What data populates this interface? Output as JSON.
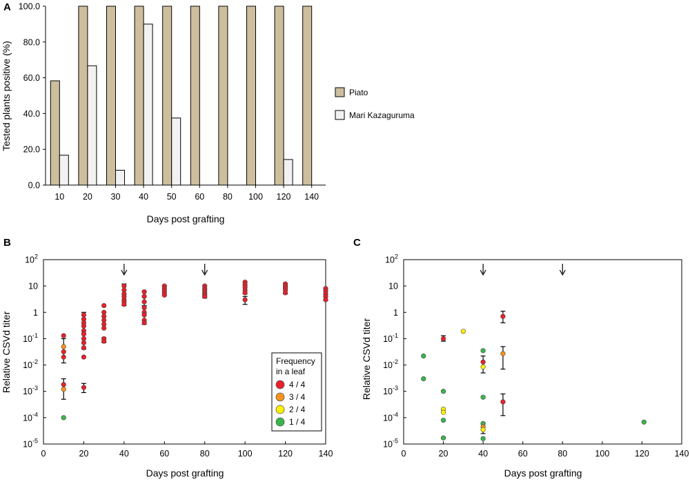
{
  "colors": {
    "piato": "#cdbf9e",
    "mari": "#f2f2f2",
    "freq_4_4": "#e8202a",
    "freq_3_4": "#f7941d",
    "freq_2_4": "#fff200",
    "freq_1_4": "#39b54a"
  },
  "chart_data": [
    {
      "panel_label": "A",
      "type": "bar",
      "categories": [
        "10",
        "20",
        "30",
        "40",
        "50",
        "60",
        "80",
        "100",
        "120",
        "140"
      ],
      "series": [
        {
          "name": "Piato",
          "values": [
            58.3,
            100,
            100,
            100,
            100,
            100,
            100,
            100,
            100,
            100
          ]
        },
        {
          "name": "Mari Kazaguruma",
          "values": [
            16.7,
            66.7,
            8.3,
            90.0,
            37.5,
            0,
            0,
            0,
            14.3,
            0
          ]
        }
      ],
      "xlabel": "Days post grafting",
      "ylabel": "Tested plants positive (%)",
      "ylim": [
        0,
        100
      ],
      "yticks": [
        "0.0",
        "20.0",
        "40.0",
        "60.0",
        "80.0",
        "100.0"
      ],
      "legend_position": "right"
    },
    {
      "panel_label": "B",
      "type": "scatter",
      "xlabel": "Days post grafting",
      "ylabel": "Relative CSVd titer",
      "xlim": [
        0,
        140
      ],
      "xticks": [
        "0",
        "20",
        "40",
        "60",
        "80",
        "100",
        "120",
        "140"
      ],
      "ylim_log10": [
        -5,
        2
      ],
      "yticks": [
        {
          "base": "10",
          "exp": "2"
        },
        {
          "base": "10",
          "exp": ""
        },
        {
          "base": "1",
          "exp": ""
        },
        {
          "base": "10",
          "exp": "-1"
        },
        {
          "base": "10",
          "exp": "-2"
        },
        {
          "base": "10",
          "exp": "-3"
        },
        {
          "base": "10",
          "exp": "-4"
        },
        {
          "base": "10",
          "exp": "-5"
        }
      ],
      "arrows_at_days": [
        40,
        80
      ],
      "legend": {
        "title_lines": [
          "Frequency",
          "in a leaf"
        ],
        "entries": [
          "4 / 4",
          "3 / 4",
          "2 / 4",
          "1 / 4"
        ],
        "position": "lower-right"
      },
      "points": [
        {
          "x": 10,
          "y": 0.13,
          "f": "4/4"
        },
        {
          "x": 10,
          "y": 0.05,
          "f": "3/4"
        },
        {
          "x": 10,
          "y": 0.032,
          "f": "4/4"
        },
        {
          "x": 10,
          "y": 0.02,
          "f": "4/4"
        },
        {
          "x": 10,
          "y": 0.0018,
          "f": "4/4"
        },
        {
          "x": 10,
          "y": 0.0012,
          "f": "3/4"
        },
        {
          "x": 10,
          "y": 0.0001,
          "f": "1/4"
        },
        {
          "x": 20,
          "y": 0.8,
          "f": "4/4"
        },
        {
          "x": 20,
          "y": 0.55,
          "f": "4/4"
        },
        {
          "x": 20,
          "y": 0.4,
          "f": "4/4"
        },
        {
          "x": 20,
          "y": 0.3,
          "f": "4/4"
        },
        {
          "x": 20,
          "y": 0.2,
          "f": "4/4"
        },
        {
          "x": 20,
          "y": 0.15,
          "f": "4/4"
        },
        {
          "x": 20,
          "y": 0.1,
          "f": "4/4"
        },
        {
          "x": 20,
          "y": 0.07,
          "f": "4/4"
        },
        {
          "x": 20,
          "y": 0.045,
          "f": "4/4"
        },
        {
          "x": 20,
          "y": 0.02,
          "f": "4/4"
        },
        {
          "x": 20,
          "y": 0.0014,
          "f": "4/4"
        },
        {
          "x": 30,
          "y": 1.8,
          "f": "4/4"
        },
        {
          "x": 30,
          "y": 1.0,
          "f": "4/4"
        },
        {
          "x": 30,
          "y": 0.7,
          "f": "4/4"
        },
        {
          "x": 30,
          "y": 0.5,
          "f": "4/4"
        },
        {
          "x": 30,
          "y": 0.35,
          "f": "4/4"
        },
        {
          "x": 30,
          "y": 0.25,
          "f": "4/4"
        },
        {
          "x": 30,
          "y": 0.1,
          "f": "4/4"
        },
        {
          "x": 30,
          "y": 0.08,
          "f": "4/4"
        },
        {
          "x": 40,
          "y": 10,
          "f": "4/4"
        },
        {
          "x": 40,
          "y": 7,
          "f": "4/4"
        },
        {
          "x": 40,
          "y": 5,
          "f": "4/4"
        },
        {
          "x": 40,
          "y": 4,
          "f": "4/4"
        },
        {
          "x": 40,
          "y": 3,
          "f": "4/4"
        },
        {
          "x": 40,
          "y": 2.5,
          "f": "4/4"
        },
        {
          "x": 40,
          "y": 2,
          "f": "4/4"
        },
        {
          "x": 50,
          "y": 6,
          "f": "4/4"
        },
        {
          "x": 50,
          "y": 4,
          "f": "4/4"
        },
        {
          "x": 50,
          "y": 2.5,
          "f": "4/4"
        },
        {
          "x": 50,
          "y": 1.5,
          "f": "4/4"
        },
        {
          "x": 50,
          "y": 1.0,
          "f": "4/4"
        },
        {
          "x": 50,
          "y": 0.8,
          "f": "4/4"
        },
        {
          "x": 50,
          "y": 0.5,
          "f": "4/4"
        },
        {
          "x": 50,
          "y": 0.4,
          "f": "4/4"
        },
        {
          "x": 60,
          "y": 10,
          "f": "4/4"
        },
        {
          "x": 60,
          "y": 8,
          "f": "4/4"
        },
        {
          "x": 60,
          "y": 6.5,
          "f": "4/4"
        },
        {
          "x": 60,
          "y": 5.5,
          "f": "4/4"
        },
        {
          "x": 60,
          "y": 4.5,
          "f": "4/4"
        },
        {
          "x": 80,
          "y": 10,
          "f": "4/4"
        },
        {
          "x": 80,
          "y": 8,
          "f": "4/4"
        },
        {
          "x": 80,
          "y": 7,
          "f": "4/4"
        },
        {
          "x": 80,
          "y": 6,
          "f": "4/4"
        },
        {
          "x": 80,
          "y": 5,
          "f": "4/4"
        },
        {
          "x": 80,
          "y": 4.5,
          "f": "4/4"
        },
        {
          "x": 80,
          "y": 4,
          "f": "4/4"
        },
        {
          "x": 100,
          "y": 14,
          "f": "4/4"
        },
        {
          "x": 100,
          "y": 11,
          "f": "4/4"
        },
        {
          "x": 100,
          "y": 9,
          "f": "4/4"
        },
        {
          "x": 100,
          "y": 7,
          "f": "4/4"
        },
        {
          "x": 100,
          "y": 5.5,
          "f": "4/4"
        },
        {
          "x": 100,
          "y": 3,
          "f": "4/4"
        },
        {
          "x": 120,
          "y": 12,
          "f": "4/4"
        },
        {
          "x": 120,
          "y": 10,
          "f": "4/4"
        },
        {
          "x": 120,
          "y": 8.5,
          "f": "4/4"
        },
        {
          "x": 120,
          "y": 7,
          "f": "4/4"
        },
        {
          "x": 120,
          "y": 5.5,
          "f": "4/4"
        },
        {
          "x": 140,
          "y": 8,
          "f": "4/4"
        },
        {
          "x": 140,
          "y": 6.5,
          "f": "4/4"
        },
        {
          "x": 140,
          "y": 5,
          "f": "4/4"
        },
        {
          "x": 140,
          "y": 4,
          "f": "4/4"
        },
        {
          "x": 140,
          "y": 3,
          "f": "4/4"
        }
      ],
      "error_bars": [
        {
          "x": 10,
          "y": 0.035,
          "lo": 0.012,
          "hi": 0.1
        },
        {
          "x": 10,
          "y": 0.0012,
          "lo": 0.0005,
          "hi": 0.003
        },
        {
          "x": 20,
          "y": 0.2,
          "lo": 0.04,
          "hi": 1.0
        },
        {
          "x": 20,
          "y": 0.0014,
          "lo": 0.0009,
          "hi": 0.002
        },
        {
          "x": 30,
          "y": 0.5,
          "lo": 0.25,
          "hi": 1.0
        },
        {
          "x": 30,
          "y": 0.09,
          "lo": 0.07,
          "hi": 0.11
        },
        {
          "x": 40,
          "y": 4,
          "lo": 1.8,
          "hi": 12
        },
        {
          "x": 50,
          "y": 3.5,
          "lo": 1.8,
          "hi": 6.5
        },
        {
          "x": 50,
          "y": 0.8,
          "lo": 0.35,
          "hi": 1.8
        },
        {
          "x": 60,
          "y": 6.5,
          "lo": 4.5,
          "hi": 10
        },
        {
          "x": 80,
          "y": 6,
          "lo": 3.5,
          "hi": 10
        },
        {
          "x": 100,
          "y": 8,
          "lo": 5,
          "hi": 14
        },
        {
          "x": 100,
          "y": 3,
          "lo": 2,
          "hi": 4
        },
        {
          "x": 120,
          "y": 8,
          "lo": 5,
          "hi": 12
        },
        {
          "x": 140,
          "y": 5,
          "lo": 2.8,
          "hi": 8
        }
      ]
    },
    {
      "panel_label": "C",
      "type": "scatter",
      "xlabel": "Days post grafting",
      "ylabel": "Relative CSVd titer",
      "xlim": [
        0,
        140
      ],
      "xticks": [
        "0",
        "20",
        "40",
        "60",
        "80",
        "100",
        "120",
        "140"
      ],
      "ylim_log10": [
        -5,
        2
      ],
      "yticks": [
        {
          "base": "10",
          "exp": "2"
        },
        {
          "base": "10",
          "exp": ""
        },
        {
          "base": "1",
          "exp": ""
        },
        {
          "base": "10",
          "exp": "-1"
        },
        {
          "base": "10",
          "exp": "-2"
        },
        {
          "base": "10",
          "exp": "-3"
        },
        {
          "base": "10",
          "exp": "-4"
        },
        {
          "base": "10",
          "exp": "-5"
        }
      ],
      "arrows_at_days": [
        40,
        80
      ],
      "points": [
        {
          "x": 10,
          "y": 0.022,
          "f": "1/4"
        },
        {
          "x": 10,
          "y": 0.003,
          "f": "1/4"
        },
        {
          "x": 20,
          "y": 0.1,
          "f": "4/4"
        },
        {
          "x": 20,
          "y": 0.001,
          "f": "1/4"
        },
        {
          "x": 20,
          "y": 0.00021,
          "f": "2/4"
        },
        {
          "x": 20,
          "y": 0.00016,
          "f": "2/4"
        },
        {
          "x": 20,
          "y": 8e-05,
          "f": "1/4"
        },
        {
          "x": 20,
          "y": 1.7e-05,
          "f": "1/4"
        },
        {
          "x": 30,
          "y": 0.19,
          "f": "2/4"
        },
        {
          "x": 40,
          "y": 0.035,
          "f": "1/4"
        },
        {
          "x": 40,
          "y": 0.013,
          "f": "4/4"
        },
        {
          "x": 40,
          "y": 0.0085,
          "f": "2/4"
        },
        {
          "x": 40,
          "y": 0.0006,
          "f": "1/4"
        },
        {
          "x": 40,
          "y": 6e-05,
          "f": "1/4"
        },
        {
          "x": 40,
          "y": 4.5e-05,
          "f": "3/4"
        },
        {
          "x": 40,
          "y": 3.5e-05,
          "f": "2/4"
        },
        {
          "x": 40,
          "y": 1.6e-05,
          "f": "1/4"
        },
        {
          "x": 50,
          "y": 0.7,
          "f": "4/4"
        },
        {
          "x": 50,
          "y": 0.027,
          "f": "3/4"
        },
        {
          "x": 50,
          "y": 0.0004,
          "f": "4/4"
        },
        {
          "x": 121,
          "y": 6.8e-05,
          "f": "1/4"
        }
      ],
      "error_bars": [
        {
          "x": 20,
          "y": 0.1,
          "lo": 0.08,
          "hi": 0.13
        },
        {
          "x": 40,
          "y": 0.012,
          "lo": 0.005,
          "hi": 0.022
        },
        {
          "x": 40,
          "y": 4e-05,
          "lo": 2.5e-05,
          "hi": 6e-05
        },
        {
          "x": 50,
          "y": 0.7,
          "lo": 0.4,
          "hi": 1.1
        },
        {
          "x": 50,
          "y": 0.027,
          "lo": 0.007,
          "hi": 0.05
        },
        {
          "x": 50,
          "y": 0.0004,
          "lo": 0.00012,
          "hi": 0.0008
        }
      ]
    }
  ]
}
